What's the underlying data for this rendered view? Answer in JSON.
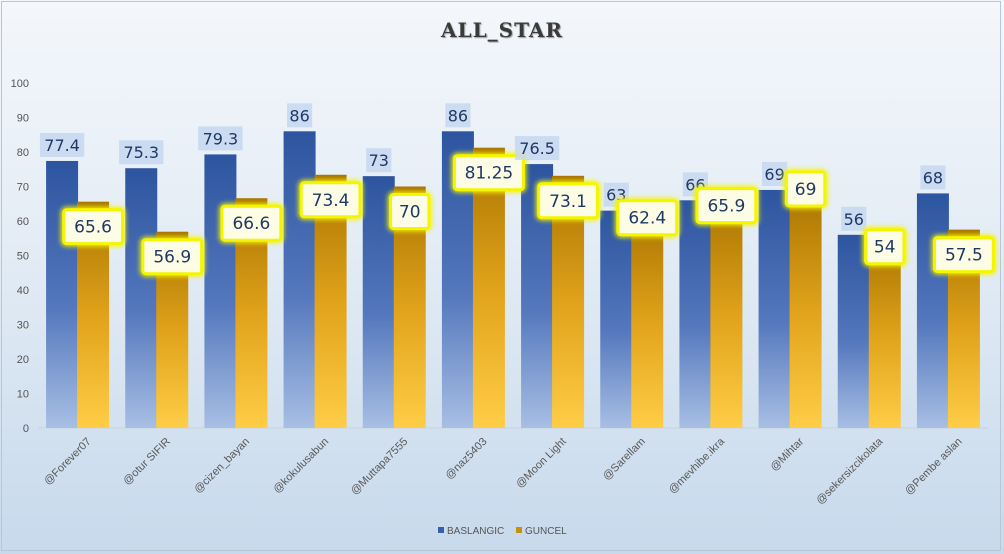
{
  "chart_data": {
    "type": "bar",
    "title": "ALL_STAR",
    "xlabel": "",
    "ylabel": "",
    "ylim": [
      0,
      100
    ],
    "yticks": [
      0,
      10,
      20,
      30,
      40,
      50,
      60,
      70,
      80,
      90,
      100
    ],
    "categories": [
      "@Forever07",
      "@otur SIFIR",
      "@cizen_bayan",
      "@kokulusabun",
      "@Muttapa7555",
      "@naz5403",
      "@Moon Light",
      "@Sarellam",
      "@mevhibe.ikra",
      "@Mihtar",
      "@sekersizcikolata",
      "@Pembe aslan"
    ],
    "series": [
      {
        "name": "BASLANGIC",
        "values": [
          77.4,
          75.3,
          79.3,
          86,
          73,
          86,
          76.5,
          63,
          66,
          69,
          56,
          68
        ],
        "labels": [
          "77.4",
          "75.3",
          "79.3",
          "86",
          "73",
          "86",
          "76.5",
          "63",
          "66",
          "69",
          "56",
          "68"
        ],
        "color": "#3660ad"
      },
      {
        "name": "GUNCEL",
        "values": [
          65.6,
          56.9,
          66.6,
          73.4,
          70,
          81.25,
          73.1,
          62.4,
          65.9,
          69,
          54,
          57.5
        ],
        "labels": [
          "65.6",
          "56.9",
          "66.6",
          "73.4",
          "70",
          "81.25",
          "73.1",
          "62.4",
          "65.9",
          "69",
          "54",
          "57.5"
        ],
        "color": "#c8900f"
      }
    ],
    "grid": false,
    "legend_position": "bottom"
  },
  "colors": {
    "label_highlight_yellow": "#f5f500",
    "label_highlight_blue": "#c5d8f1"
  }
}
